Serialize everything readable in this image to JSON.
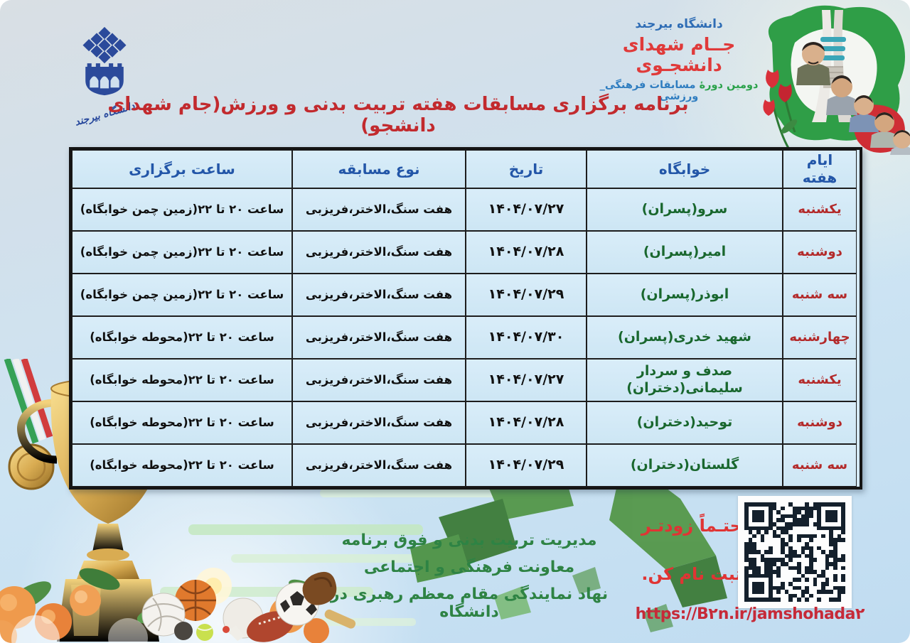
{
  "palette": {
    "title_red": "#c22a2e",
    "event_title_red": "#e03a3a",
    "header_blue": "#2356a8",
    "day_red": "#b32a2a",
    "dorm_green": "#19672e",
    "footer_green": "#2e8344",
    "cta_red": "#e03434",
    "subtitle_green": "#2aa24a",
    "subtitle_blue": "#2f7dc0",
    "table_cell_bg": "#d4e9f6",
    "background_blue": "#c8e0f2"
  },
  "header": {
    "university_name": "دانشگاه بیرجند",
    "event_title": "جــام شهدای دانشجـوی",
    "subtitle_part1": "دومین دورهٔ",
    "subtitle_part2": "مسابقات فرهنگی_ ورزشی",
    "logo_caption": "دانشگاه بیرجند"
  },
  "page_title": "برنامه برگزاری مسابقات هفته تربیت بدنی و ورزش(جام شهدای دانشجو)",
  "schedule_table": {
    "headers": [
      "ایام هفته",
      "خوابگاه",
      "تاریخ",
      "نوع مسابقه",
      "ساعت برگزاری"
    ],
    "rows": [
      {
        "day": "یکشنبه",
        "dorm": "سرو(پسران)",
        "date": "۱۴۰۴/۰۷/۲۷",
        "type": "هفت سنگ،الاختر،فریزبی",
        "time": "ساعت ۲۰ تا ۲۲(زمین چمن خوابگاه)"
      },
      {
        "day": "دوشنبه",
        "dorm": "امیر(پسران)",
        "date": "۱۴۰۴/۰۷/۲۸",
        "type": "هفت سنگ،الاختر،فریزبی",
        "time": "ساعت ۲۰ تا ۲۲(زمین چمن خوابگاه)"
      },
      {
        "day": "سه شنبه",
        "dorm": "ابوذر(پسران)",
        "date": "۱۴۰۴/۰۷/۲۹",
        "type": "هفت سنگ،الاختر،فریزبی",
        "time": "ساعت ۲۰ تا ۲۲(زمین چمن خوابگاه)"
      },
      {
        "day": "چهارشنبه",
        "dorm": "شهید خدری(پسران)",
        "date": "۱۴۰۴/۰۷/۳۰",
        "type": "هفت سنگ،الاختر،فریزبی",
        "time": "ساعت ۲۰ تا ۲۲(محوطه خوابگاه)"
      },
      {
        "day": "یکشنبه",
        "dorm": "صدف و سردار سلیمانی(دختران)",
        "date": "۱۴۰۴/۰۷/۲۷",
        "type": "هفت سنگ،الاختر،فریزبی",
        "time": "ساعت ۲۰ تا ۲۲(محوطه خوابگاه)"
      },
      {
        "day": "دوشنبه",
        "dorm": "توحید(دختران)",
        "date": "۱۴۰۴/۰۷/۲۸",
        "type": "هفت سنگ،الاختر،فریزبی",
        "time": "ساعت ۲۰ تا ۲۲(محوطه خوابگاه)"
      },
      {
        "day": "سه شنبه",
        "dorm": "گلستان(دختران)",
        "date": "۱۴۰۴/۰۷/۲۹",
        "type": "هفت سنگ،الاختر،فریزبی",
        "time": "ساعت ۲۰ تا ۲۲(محوطه خوابگاه)"
      }
    ]
  },
  "footer": {
    "org_lines": [
      "مدیریت تربیت بدنی و فوق برنامه",
      "معاونت فرهنگی و اجتماعی",
      "نهاد نمایندگی مقام معظم رهبری در دانشگاه"
    ],
    "cta_line1": "حتـماً زودتـر",
    "cta_line2": "ثبت نام کن.",
    "registration_url": "https://B۲n.ir/jamshohada۲"
  }
}
